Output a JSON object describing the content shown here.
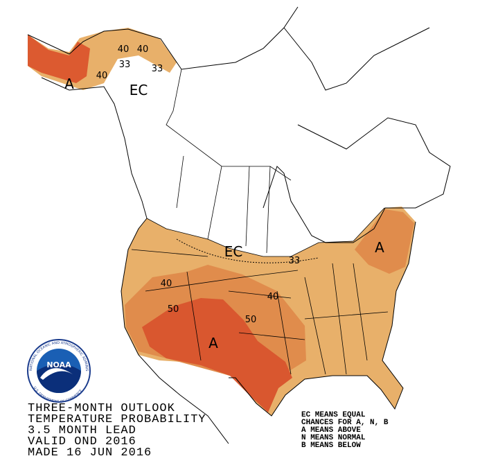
{
  "header": {
    "lines": [
      "THREE-MONTH OUTLOOK",
      "TEMPERATURE PROBABILITY",
      "3.5 MONTH LEAD",
      "VALID OND 2016",
      "MADE 16 JUN 2016"
    ]
  },
  "legend": {
    "lines": [
      "EC MEANS EQUAL",
      "CHANCES FOR A, N, B",
      "A MEANS ABOVE",
      "N MEANS NORMAL",
      "B MEANS BELOW"
    ]
  },
  "logo": {
    "name": "NOAA",
    "ring_top": "NATIONAL OCEANIC AND ATMOSPHERIC ADMINISTRATION",
    "ring_bottom": "U.S. DEPARTMENT OF COMMERCE"
  },
  "map": {
    "region_labels": [
      "A",
      "EC",
      "EC",
      "A",
      "A"
    ],
    "contour_labels": [
      40,
      33,
      40,
      33,
      40,
      33,
      40,
      50,
      40,
      50
    ]
  }
}
